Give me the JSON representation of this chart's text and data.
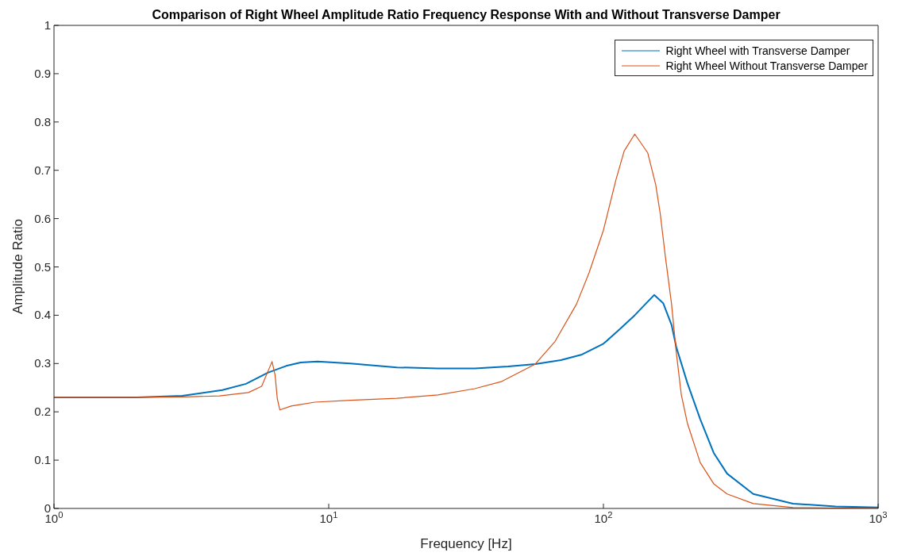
{
  "chart_data": {
    "type": "line",
    "title": "Comparison of Right Wheel Amplitude Ratio Frequency Response With and Without Transverse Damper",
    "xlabel": "Frequency [Hz]",
    "ylabel": "Amplitude Ratio",
    "log": "x",
    "xlim": [
      1,
      1000
    ],
    "xticks": [
      {
        "value": 1,
        "label": "10$^{0}$"
      },
      {
        "value": 10,
        "label": "10$^{1}$"
      },
      {
        "value": 100,
        "label": "10$^{2}$"
      },
      {
        "value": 1000,
        "label": "10$^{3}$"
      }
    ],
    "ylim": [
      0,
      1
    ],
    "yticks": [
      0,
      0.1,
      0.2,
      0.3,
      0.4,
      0.5,
      0.6,
      0.7,
      0.8,
      0.9,
      1
    ],
    "legend": "top right",
    "marker": "none",
    "line_style": "solid",
    "series": [
      {
        "name": "Right Wheel with Transverse Damper",
        "color": "#0072bd",
        "x": [
          1,
          2,
          2.93,
          4.1,
          5,
          6,
          7,
          7.9,
          9.1,
          12,
          17.7,
          25,
          34,
          45,
          56.5,
          70,
          83,
          100,
          113,
          130,
          153,
          165,
          177,
          184,
          202,
          225,
          252,
          282,
          351,
          490,
          700,
          1000
        ],
        "values": [
          0.23,
          0.23,
          0.233,
          0.245,
          0.258,
          0.281,
          0.295,
          0.302,
          0.304,
          0.3,
          0.292,
          0.29,
          0.29,
          0.294,
          0.299,
          0.307,
          0.318,
          0.341,
          0.368,
          0.4,
          0.442,
          0.425,
          0.38,
          0.335,
          0.26,
          0.185,
          0.115,
          0.072,
          0.03,
          0.01,
          0.004,
          0.002
        ]
      },
      {
        "name": "Right Wheel Without Transverse Damper",
        "color": "#d95319",
        "x": [
          1,
          2,
          3,
          4,
          5.1,
          5.7,
          5.98,
          6.22,
          6.38,
          6.5,
          6.64,
          7.3,
          8.9,
          12,
          17.7,
          25,
          34,
          42.7,
          56.5,
          66.7,
          79.8,
          88.8,
          100,
          111,
          119,
          130,
          145,
          155,
          161,
          168,
          177,
          184,
          192,
          202,
          225,
          252,
          282,
          351,
          490,
          1000
        ],
        "values": [
          0.23,
          0.23,
          0.231,
          0.233,
          0.24,
          0.253,
          0.281,
          0.304,
          0.276,
          0.227,
          0.204,
          0.212,
          0.22,
          0.224,
          0.228,
          0.235,
          0.248,
          0.263,
          0.299,
          0.346,
          0.423,
          0.489,
          0.576,
          0.68,
          0.74,
          0.775,
          0.736,
          0.67,
          0.61,
          0.522,
          0.423,
          0.325,
          0.236,
          0.177,
          0.095,
          0.051,
          0.03,
          0.01,
          0.002,
          0
        ]
      }
    ]
  }
}
